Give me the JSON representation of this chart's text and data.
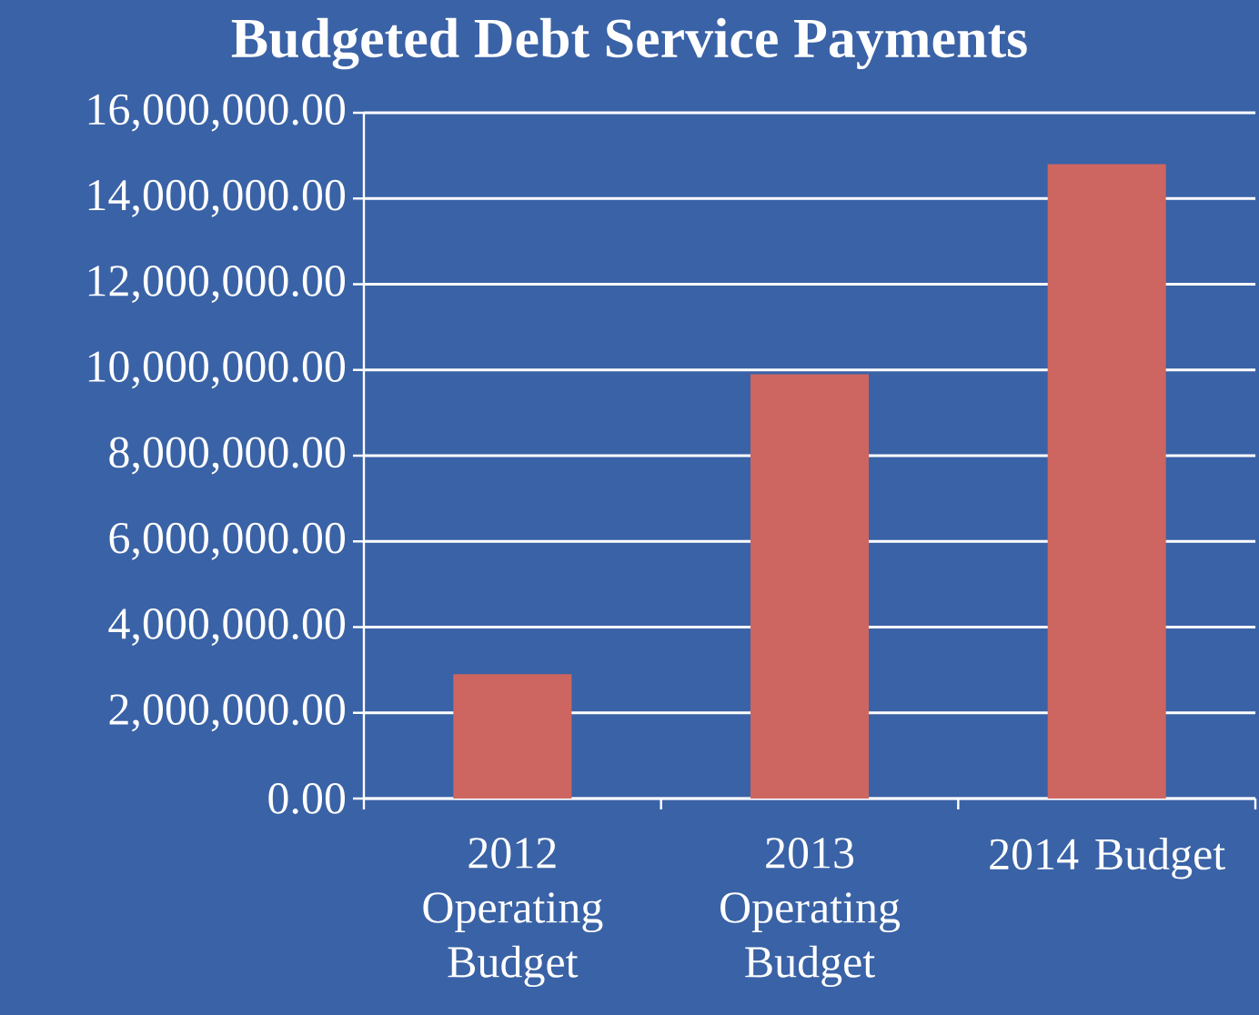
{
  "chart_data": {
    "type": "bar",
    "title": "Budgeted Debt Service Payments",
    "categories": [
      "2012 Operating Budget",
      "2013 Operating Budget",
      "2014 Budget"
    ],
    "values": [
      2900000,
      9900000,
      14800000
    ],
    "color": "#cd6660",
    "ylim": [
      0,
      16000000
    ],
    "yticks": [
      {
        "value": 0,
        "label": "0.00"
      },
      {
        "value": 2000000,
        "label": "2,000,000.00"
      },
      {
        "value": 4000000,
        "label": "4,000,000.00"
      },
      {
        "value": 6000000,
        "label": "6,000,000.00"
      },
      {
        "value": 8000000,
        "label": "8,000,000.00"
      },
      {
        "value": 10000000,
        "label": "10,000,000.00"
      },
      {
        "value": 12000000,
        "label": "12,000,000.00"
      },
      {
        "value": 14000000,
        "label": "14,000,000.00"
      },
      {
        "value": 16000000,
        "label": "16,000,000.00"
      }
    ],
    "grid": "y"
  }
}
